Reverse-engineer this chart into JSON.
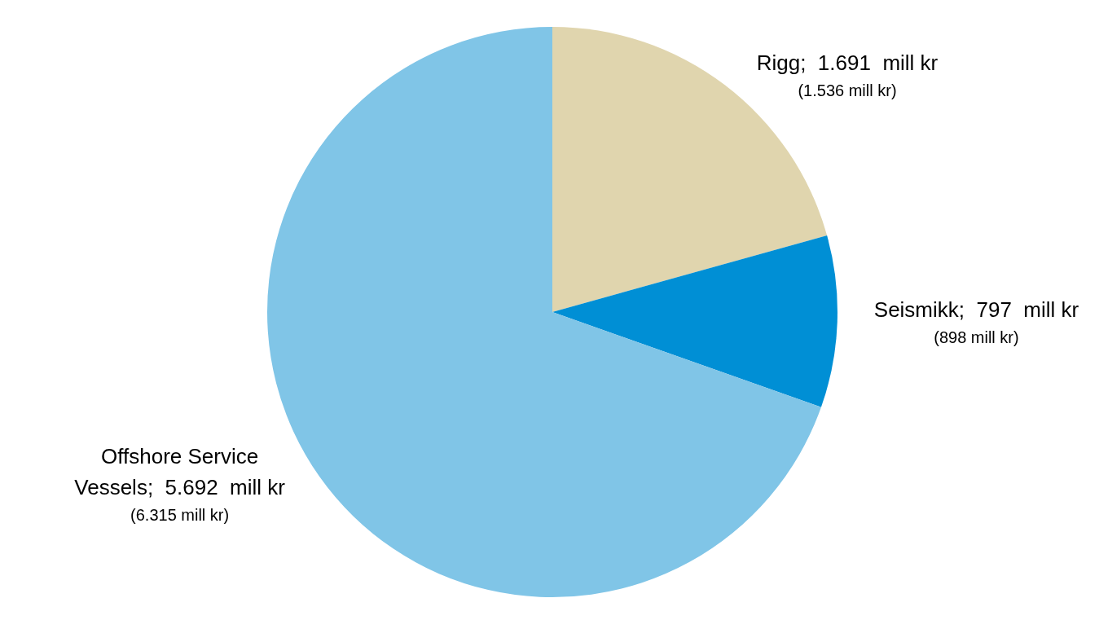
{
  "chart_data": {
    "type": "pie",
    "categories": [
      "Rigg",
      "Seismikk",
      "Offshore Service Vessels"
    ],
    "values": [
      1691,
      797,
      5692
    ],
    "value_labels": [
      "1.691  mill kr",
      "797  mill kr",
      "5.692  mill kr"
    ],
    "annotations": [
      "(1.536 mill kr)",
      "(898 mill kr)",
      "(6.315 mill kr)"
    ],
    "colors": [
      "#e0d5ae",
      "#008fd5",
      "#80c5e7"
    ],
    "legend": false
  }
}
